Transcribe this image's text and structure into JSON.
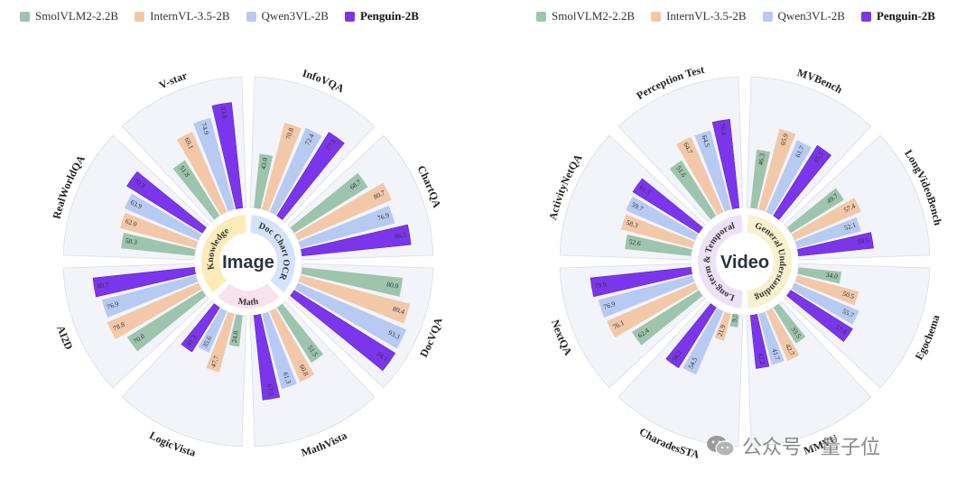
{
  "colors": {
    "smol": "#9dc4ad",
    "intern": "#f2c8a8",
    "qwen": "#b6caf2",
    "penguin": "#7b36ec",
    "sector_bg": "#f2f4f9",
    "sector_border": "#d9dde6"
  },
  "legend": {
    "items": [
      {
        "label": "SmolVLM2-2.2B",
        "color": "#9dc4ad",
        "bold": false
      },
      {
        "label": "InternVL-3.5-2B",
        "color": "#f2c8a8",
        "bold": false
      },
      {
        "label": "Qwen3VL-2B",
        "color": "#b6caf2",
        "bold": false
      },
      {
        "label": "Penguin-2B",
        "color": "#7b36ec",
        "bold": true
      }
    ]
  },
  "chart_data": [
    {
      "type": "radial-bar",
      "title": "Image",
      "series": [
        "SmolVLM2-2.2B",
        "InternVL-3.5-2B",
        "Qwen3VL-2B",
        "Penguin-2B"
      ],
      "rmax": 100,
      "groups": [
        {
          "label": "Doc Chart OCR",
          "color": "#d3e3fb",
          "categories": [
            "InfoVQA",
            "ChartQA",
            "DocVQA"
          ]
        },
        {
          "label": "Math",
          "color": "#f8e3ec",
          "categories": [
            "MathVista",
            "LogicVista"
          ]
        },
        {
          "label": "Knowledge",
          "color": "#fdebb8",
          "categories": [
            "AI2D",
            "RealWorldQA",
            "V-star"
          ]
        }
      ],
      "categories": [
        {
          "name": "InfoVQA",
          "values": [
            43.0,
            70.8,
            72.4,
            77.8
          ]
        },
        {
          "name": "ChartQA",
          "values": [
            68.7,
            80.7,
            76.9,
            86.5
          ]
        },
        {
          "name": "DocVQA",
          "values": [
            80.0,
            89.4,
            93.3,
            94.1
          ]
        },
        {
          "name": "MathVista",
          "values": [
            51.5,
            60.8,
            61.3,
            67.3
          ]
        },
        {
          "name": "LogicVista",
          "values": [
            24.8,
            47.7,
            35.6,
            41.3
          ]
        },
        {
          "name": "AI2D",
          "values": [
            70.0,
            78.8,
            76.9,
            80.7
          ]
        },
        {
          "name": "RealWorldQA",
          "values": [
            58.3,
            62.0,
            63.9,
            70.3
          ]
        },
        {
          "name": "V-star",
          "values": [
            51.8,
            69.1,
            74.9,
            83.8
          ]
        }
      ]
    },
    {
      "type": "radial-bar",
      "title": "Video",
      "series": [
        "SmolVLM2-2.2B",
        "InternVL-3.5-2B",
        "Qwen3VL-2B",
        "Penguin-2B"
      ],
      "rmax": 100,
      "groups": [
        {
          "label": "General Understanding",
          "color": "#f6f2cd",
          "categories": [
            "MVBench",
            "LongVideoBench",
            "Egochema",
            "MMVU"
          ]
        },
        {
          "label": "Long-term & Temporal",
          "color": "#ede2f5",
          "categories": [
            "CharadesSTA",
            "NextQA",
            "ActivityNetQA",
            "Perception Test"
          ]
        }
      ],
      "categories": [
        {
          "name": "MVBench",
          "values": [
            46.3,
            65.9,
            61.7,
            65.5
          ]
        },
        {
          "name": "LongVideoBench",
          "values": [
            49.7,
            57.4,
            52.1,
            59.5
          ]
        },
        {
          "name": "Egochema",
          "values": [
            34.0,
            50.5,
            55.7,
            57.6
          ]
        },
        {
          "name": "MMVU",
          "values": [
            33.5,
            42.7,
            41.7,
            42.2
          ]
        },
        {
          "name": "CharadesSTA",
          "values": [
            9.5,
            21.9,
            54.5,
            56.2
          ]
        },
        {
          "name": "NextQA",
          "values": [
            62.4,
            76.1,
            76.9,
            79.9
          ]
        },
        {
          "name": "ActivityNetQA",
          "values": [
            52.6,
            58.3,
            59.7,
            61.5
          ]
        },
        {
          "name": "Perception Test",
          "values": [
            51.6,
            64.7,
            64.5,
            70.4
          ]
        }
      ]
    }
  ],
  "watermark": {
    "text": "公众号 · 量子位",
    "icon": "wechat-icon"
  }
}
